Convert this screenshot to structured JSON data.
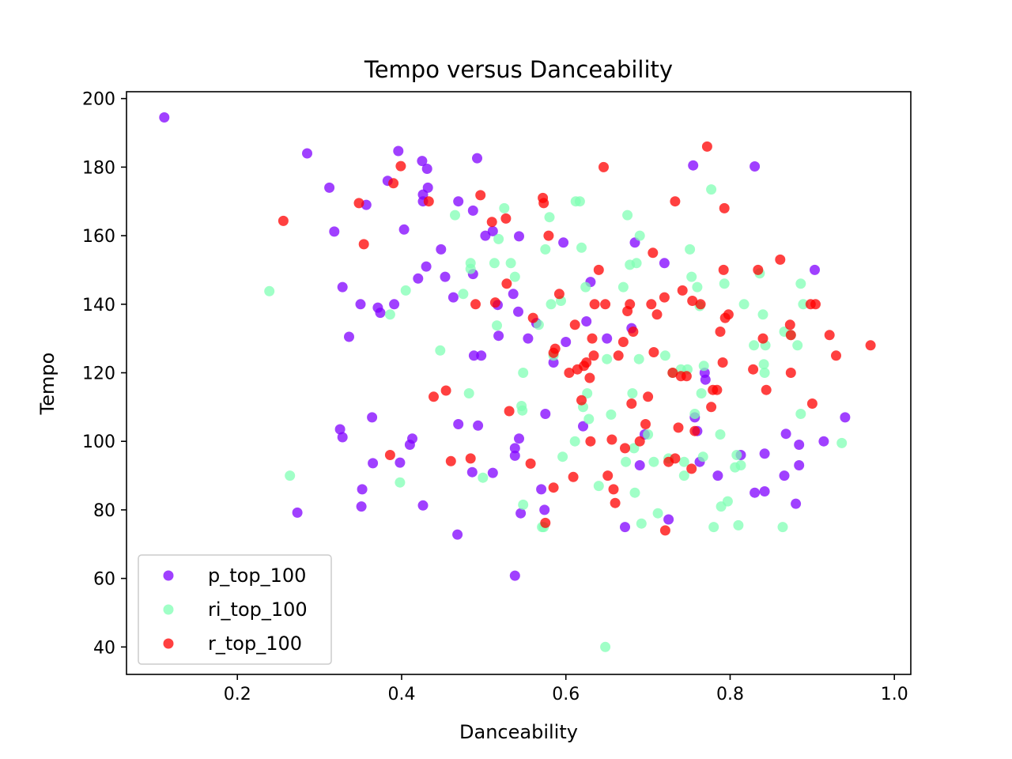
{
  "chart_data": {
    "type": "scatter",
    "title": "Tempo versus Danceability",
    "xlabel": "Danceability",
    "ylabel": "Tempo",
    "xlim": [
      0.065,
      1.02
    ],
    "ylim": [
      32,
      202
    ],
    "xticks": [
      0.2,
      0.4,
      0.6,
      0.8,
      1.0
    ],
    "xtick_labels": [
      "0.2",
      "0.4",
      "0.6",
      "0.8",
      "1.0"
    ],
    "yticks": [
      40,
      60,
      80,
      100,
      120,
      140,
      160,
      180,
      200
    ],
    "ytick_labels": [
      "40",
      "60",
      "80",
      "100",
      "120",
      "140",
      "160",
      "180",
      "200"
    ],
    "grid": false,
    "legend_position": "lower-left",
    "series": [
      {
        "name": "p_top_100",
        "color": "#8000ff",
        "points": [
          [
            0.111,
            194.5
          ],
          [
            0.285,
            184
          ],
          [
            0.312,
            174
          ],
          [
            0.318,
            161.2
          ],
          [
            0.328,
            145
          ],
          [
            0.336,
            130.5
          ],
          [
            0.325,
            103.5
          ],
          [
            0.328,
            101.2
          ],
          [
            0.273,
            79.2
          ],
          [
            0.35,
            140
          ],
          [
            0.357,
            169
          ],
          [
            0.352,
            86
          ],
          [
            0.351,
            81
          ],
          [
            0.364,
            107
          ],
          [
            0.365,
            93.6
          ],
          [
            0.371,
            139
          ],
          [
            0.374,
            137.5
          ],
          [
            0.383,
            176
          ],
          [
            0.391,
            140
          ],
          [
            0.396,
            184.7
          ],
          [
            0.398,
            93.8
          ],
          [
            0.403,
            161.8
          ],
          [
            0.41,
            99
          ],
          [
            0.413,
            100.8
          ],
          [
            0.42,
            147.5
          ],
          [
            0.425,
            181.8
          ],
          [
            0.426,
            172
          ],
          [
            0.426,
            170
          ],
          [
            0.431,
            179.5
          ],
          [
            0.432,
            174
          ],
          [
            0.43,
            151
          ],
          [
            0.426,
            81.3
          ],
          [
            0.448,
            156
          ],
          [
            0.453,
            148
          ],
          [
            0.463,
            142
          ],
          [
            0.469,
            170
          ],
          [
            0.469,
            105
          ],
          [
            0.468,
            72.8
          ],
          [
            0.487,
            167.3
          ],
          [
            0.487,
            148.8
          ],
          [
            0.488,
            125
          ],
          [
            0.492,
            182.6
          ],
          [
            0.493,
            104.6
          ],
          [
            0.486,
            91
          ],
          [
            0.497,
            125
          ],
          [
            0.502,
            160
          ],
          [
            0.511,
            161.3
          ],
          [
            0.511,
            90.8
          ],
          [
            0.517,
            139.8
          ],
          [
            0.518,
            130.8
          ],
          [
            0.536,
            143
          ],
          [
            0.538,
            98
          ],
          [
            0.538,
            95.8
          ],
          [
            0.542,
            137.8
          ],
          [
            0.543,
            159.8
          ],
          [
            0.543,
            100.8
          ],
          [
            0.545,
            79
          ],
          [
            0.538,
            60.8
          ],
          [
            0.554,
            130
          ],
          [
            0.564,
            134.5
          ],
          [
            0.57,
            86
          ],
          [
            0.574,
            80
          ],
          [
            0.575,
            108
          ],
          [
            0.585,
            123
          ],
          [
            0.597,
            158
          ],
          [
            0.6,
            129
          ],
          [
            0.621,
            104.4
          ],
          [
            0.625,
            135
          ],
          [
            0.63,
            146.5
          ],
          [
            0.65,
            130
          ],
          [
            0.672,
            75
          ],
          [
            0.68,
            133
          ],
          [
            0.684,
            158
          ],
          [
            0.69,
            93
          ],
          [
            0.696,
            102
          ],
          [
            0.72,
            152
          ],
          [
            0.725,
            77.2
          ],
          [
            0.755,
            180.5
          ],
          [
            0.757,
            107
          ],
          [
            0.76,
            103
          ],
          [
            0.763,
            94
          ],
          [
            0.769,
            120
          ],
          [
            0.77,
            118
          ],
          [
            0.785,
            90
          ],
          [
            0.813,
            96
          ],
          [
            0.83,
            85
          ],
          [
            0.83,
            180.2
          ],
          [
            0.842,
            96.4
          ],
          [
            0.842,
            85.4
          ],
          [
            0.868,
            102.2
          ],
          [
            0.866,
            90
          ],
          [
            0.88,
            81.8
          ],
          [
            0.884,
            99
          ],
          [
            0.884,
            93
          ],
          [
            0.903,
            150
          ],
          [
            0.914,
            100
          ],
          [
            0.94,
            107
          ]
        ]
      },
      {
        "name": "ri_top_100",
        "color": "#80ffb4",
        "points": [
          [
            0.239,
            143.8
          ],
          [
            0.264,
            90
          ],
          [
            0.386,
            137
          ],
          [
            0.398,
            88
          ],
          [
            0.405,
            144
          ],
          [
            0.447,
            126.5
          ],
          [
            0.465,
            166
          ],
          [
            0.475,
            143
          ],
          [
            0.482,
            114
          ],
          [
            0.484,
            152
          ],
          [
            0.484,
            150.3
          ],
          [
            0.499,
            89.4
          ],
          [
            0.513,
            152
          ],
          [
            0.516,
            133.8
          ],
          [
            0.518,
            159
          ],
          [
            0.525,
            168
          ],
          [
            0.533,
            152
          ],
          [
            0.538,
            148
          ],
          [
            0.546,
            110.3
          ],
          [
            0.547,
            109
          ],
          [
            0.548,
            81.5
          ],
          [
            0.548,
            120
          ],
          [
            0.567,
            134
          ],
          [
            0.571,
            75
          ],
          [
            0.573,
            75
          ],
          [
            0.575,
            156
          ],
          [
            0.58,
            165.4
          ],
          [
            0.582,
            140
          ],
          [
            0.585,
            125
          ],
          [
            0.594,
            141
          ],
          [
            0.596,
            95.5
          ],
          [
            0.611,
            100
          ],
          [
            0.612,
            170
          ],
          [
            0.617,
            170
          ],
          [
            0.619,
            156.5
          ],
          [
            0.621,
            110
          ],
          [
            0.624,
            145
          ],
          [
            0.626,
            114
          ],
          [
            0.628,
            106.5
          ],
          [
            0.64,
            87
          ],
          [
            0.648,
            40
          ],
          [
            0.65,
            124
          ],
          [
            0.655,
            107.8
          ],
          [
            0.67,
            145
          ],
          [
            0.673,
            94
          ],
          [
            0.675,
            166
          ],
          [
            0.678,
            151.5
          ],
          [
            0.681,
            114
          ],
          [
            0.683,
            98
          ],
          [
            0.684,
            85
          ],
          [
            0.686,
            152
          ],
          [
            0.689,
            124
          ],
          [
            0.69,
            160
          ],
          [
            0.692,
            76
          ],
          [
            0.7,
            102
          ],
          [
            0.707,
            94
          ],
          [
            0.712,
            79
          ],
          [
            0.721,
            125
          ],
          [
            0.725,
            95
          ],
          [
            0.73,
            120
          ],
          [
            0.74,
            121
          ],
          [
            0.744,
            94
          ],
          [
            0.744,
            90
          ],
          [
            0.748,
            121
          ],
          [
            0.753,
            148
          ],
          [
            0.757,
            108
          ],
          [
            0.751,
            156
          ],
          [
            0.76,
            145
          ],
          [
            0.763,
            139.5
          ],
          [
            0.765,
            114
          ],
          [
            0.767,
            95.5
          ],
          [
            0.768,
            122
          ],
          [
            0.777,
            173.5
          ],
          [
            0.78,
            75
          ],
          [
            0.788,
            102
          ],
          [
            0.789,
            81
          ],
          [
            0.793,
            146
          ],
          [
            0.797,
            82.5
          ],
          [
            0.806,
            92.4
          ],
          [
            0.808,
            96
          ],
          [
            0.81,
            75.5
          ],
          [
            0.813,
            93
          ],
          [
            0.817,
            140
          ],
          [
            0.829,
            128
          ],
          [
            0.836,
            149
          ],
          [
            0.84,
            137
          ],
          [
            0.841,
            122.5
          ],
          [
            0.842,
            120
          ],
          [
            0.843,
            128
          ],
          [
            0.864,
            75
          ],
          [
            0.866,
            132
          ],
          [
            0.874,
            131
          ],
          [
            0.882,
            128
          ],
          [
            0.886,
            146
          ],
          [
            0.886,
            108
          ],
          [
            0.889,
            140
          ],
          [
            0.936,
            99.5
          ]
        ]
      },
      {
        "name": "r_top_100",
        "color": "#ff0000",
        "points": [
          [
            0.256,
            164.3
          ],
          [
            0.348,
            169.5
          ],
          [
            0.354,
            157.5
          ],
          [
            0.39,
            175.3
          ],
          [
            0.386,
            96
          ],
          [
            0.399,
            180.3
          ],
          [
            0.433,
            170
          ],
          [
            0.439,
            113
          ],
          [
            0.454,
            114.8
          ],
          [
            0.46,
            94.2
          ],
          [
            0.484,
            95
          ],
          [
            0.49,
            140
          ],
          [
            0.496,
            171.8
          ],
          [
            0.51,
            164
          ],
          [
            0.514,
            140.5
          ],
          [
            0.527,
            165
          ],
          [
            0.528,
            146
          ],
          [
            0.531,
            108.8
          ],
          [
            0.557,
            93.5
          ],
          [
            0.56,
            136
          ],
          [
            0.572,
            171
          ],
          [
            0.573,
            169.5
          ],
          [
            0.575,
            76.2
          ],
          [
            0.579,
            160
          ],
          [
            0.585,
            86.5
          ],
          [
            0.585,
            125.8
          ],
          [
            0.587,
            127
          ],
          [
            0.592,
            143
          ],
          [
            0.604,
            120
          ],
          [
            0.609,
            89.6
          ],
          [
            0.611,
            134
          ],
          [
            0.614,
            121
          ],
          [
            0.619,
            112
          ],
          [
            0.622,
            122
          ],
          [
            0.625,
            123
          ],
          [
            0.629,
            118.5
          ],
          [
            0.63,
            100
          ],
          [
            0.632,
            130
          ],
          [
            0.634,
            125
          ],
          [
            0.635,
            140
          ],
          [
            0.64,
            150
          ],
          [
            0.646,
            180
          ],
          [
            0.648,
            140
          ],
          [
            0.651,
            90
          ],
          [
            0.656,
            100.5
          ],
          [
            0.658,
            86
          ],
          [
            0.66,
            82
          ],
          [
            0.664,
            125
          ],
          [
            0.67,
            129
          ],
          [
            0.672,
            98
          ],
          [
            0.675,
            138
          ],
          [
            0.678,
            140
          ],
          [
            0.68,
            111
          ],
          [
            0.682,
            132
          ],
          [
            0.69,
            100
          ],
          [
            0.697,
            105
          ],
          [
            0.7,
            113
          ],
          [
            0.704,
            140
          ],
          [
            0.706,
            155
          ],
          [
            0.707,
            126
          ],
          [
            0.711,
            137
          ],
          [
            0.72,
            142
          ],
          [
            0.721,
            74
          ],
          [
            0.725,
            94
          ],
          [
            0.73,
            120
          ],
          [
            0.733,
            170
          ],
          [
            0.733,
            95
          ],
          [
            0.737,
            104
          ],
          [
            0.74,
            119
          ],
          [
            0.742,
            144
          ],
          [
            0.747,
            119
          ],
          [
            0.753,
            92
          ],
          [
            0.754,
            141
          ],
          [
            0.757,
            103
          ],
          [
            0.764,
            140
          ],
          [
            0.772,
            186
          ],
          [
            0.777,
            110
          ],
          [
            0.779,
            115
          ],
          [
            0.784,
            115
          ],
          [
            0.788,
            132
          ],
          [
            0.791,
            123
          ],
          [
            0.792,
            150
          ],
          [
            0.793,
            168
          ],
          [
            0.794,
            136
          ],
          [
            0.798,
            137
          ],
          [
            0.828,
            121
          ],
          [
            0.834,
            150
          ],
          [
            0.84,
            130
          ],
          [
            0.844,
            115
          ],
          [
            0.861,
            153
          ],
          [
            0.873,
            134
          ],
          [
            0.874,
            131
          ],
          [
            0.874,
            120
          ],
          [
            0.898,
            140
          ],
          [
            0.9,
            111
          ],
          [
            0.904,
            140
          ],
          [
            0.921,
            131
          ],
          [
            0.929,
            125
          ],
          [
            0.971,
            128
          ]
        ]
      }
    ]
  }
}
